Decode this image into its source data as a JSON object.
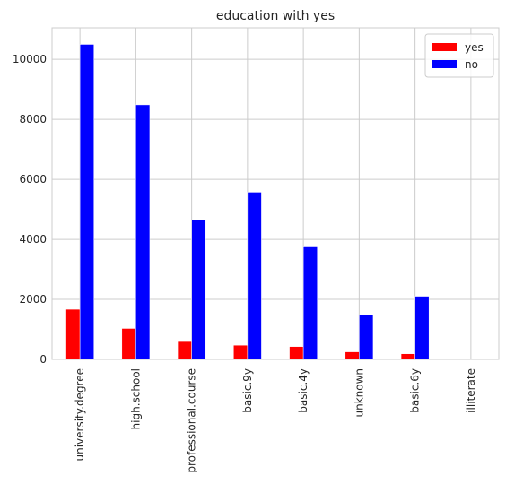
{
  "chart_data": {
    "type": "bar",
    "title": "education with yes",
    "xlabel": "",
    "ylabel": "",
    "categories": [
      "university.degree",
      "high.school",
      "professional.course",
      "basic.9y",
      "basic.4y",
      "unknown",
      "basic.6y",
      "illiterate"
    ],
    "series": [
      {
        "name": "yes",
        "color": "#ff0000",
        "values": [
          1670,
          1031,
          595,
          473,
          428,
          251,
          188,
          4
        ]
      },
      {
        "name": "no",
        "color": "#0000ff",
        "values": [
          10498,
          8484,
          4648,
          5572,
          3748,
          1480,
          2104,
          14
        ]
      }
    ],
    "ylim": [
      0,
      11050
    ],
    "yticks": [
      0,
      2000,
      4000,
      6000,
      8000,
      10000
    ],
    "ytick_labels": [
      "0",
      "2000",
      "4000",
      "6000",
      "8000",
      "10000"
    ],
    "grid": true,
    "legend_position": "top-right"
  }
}
